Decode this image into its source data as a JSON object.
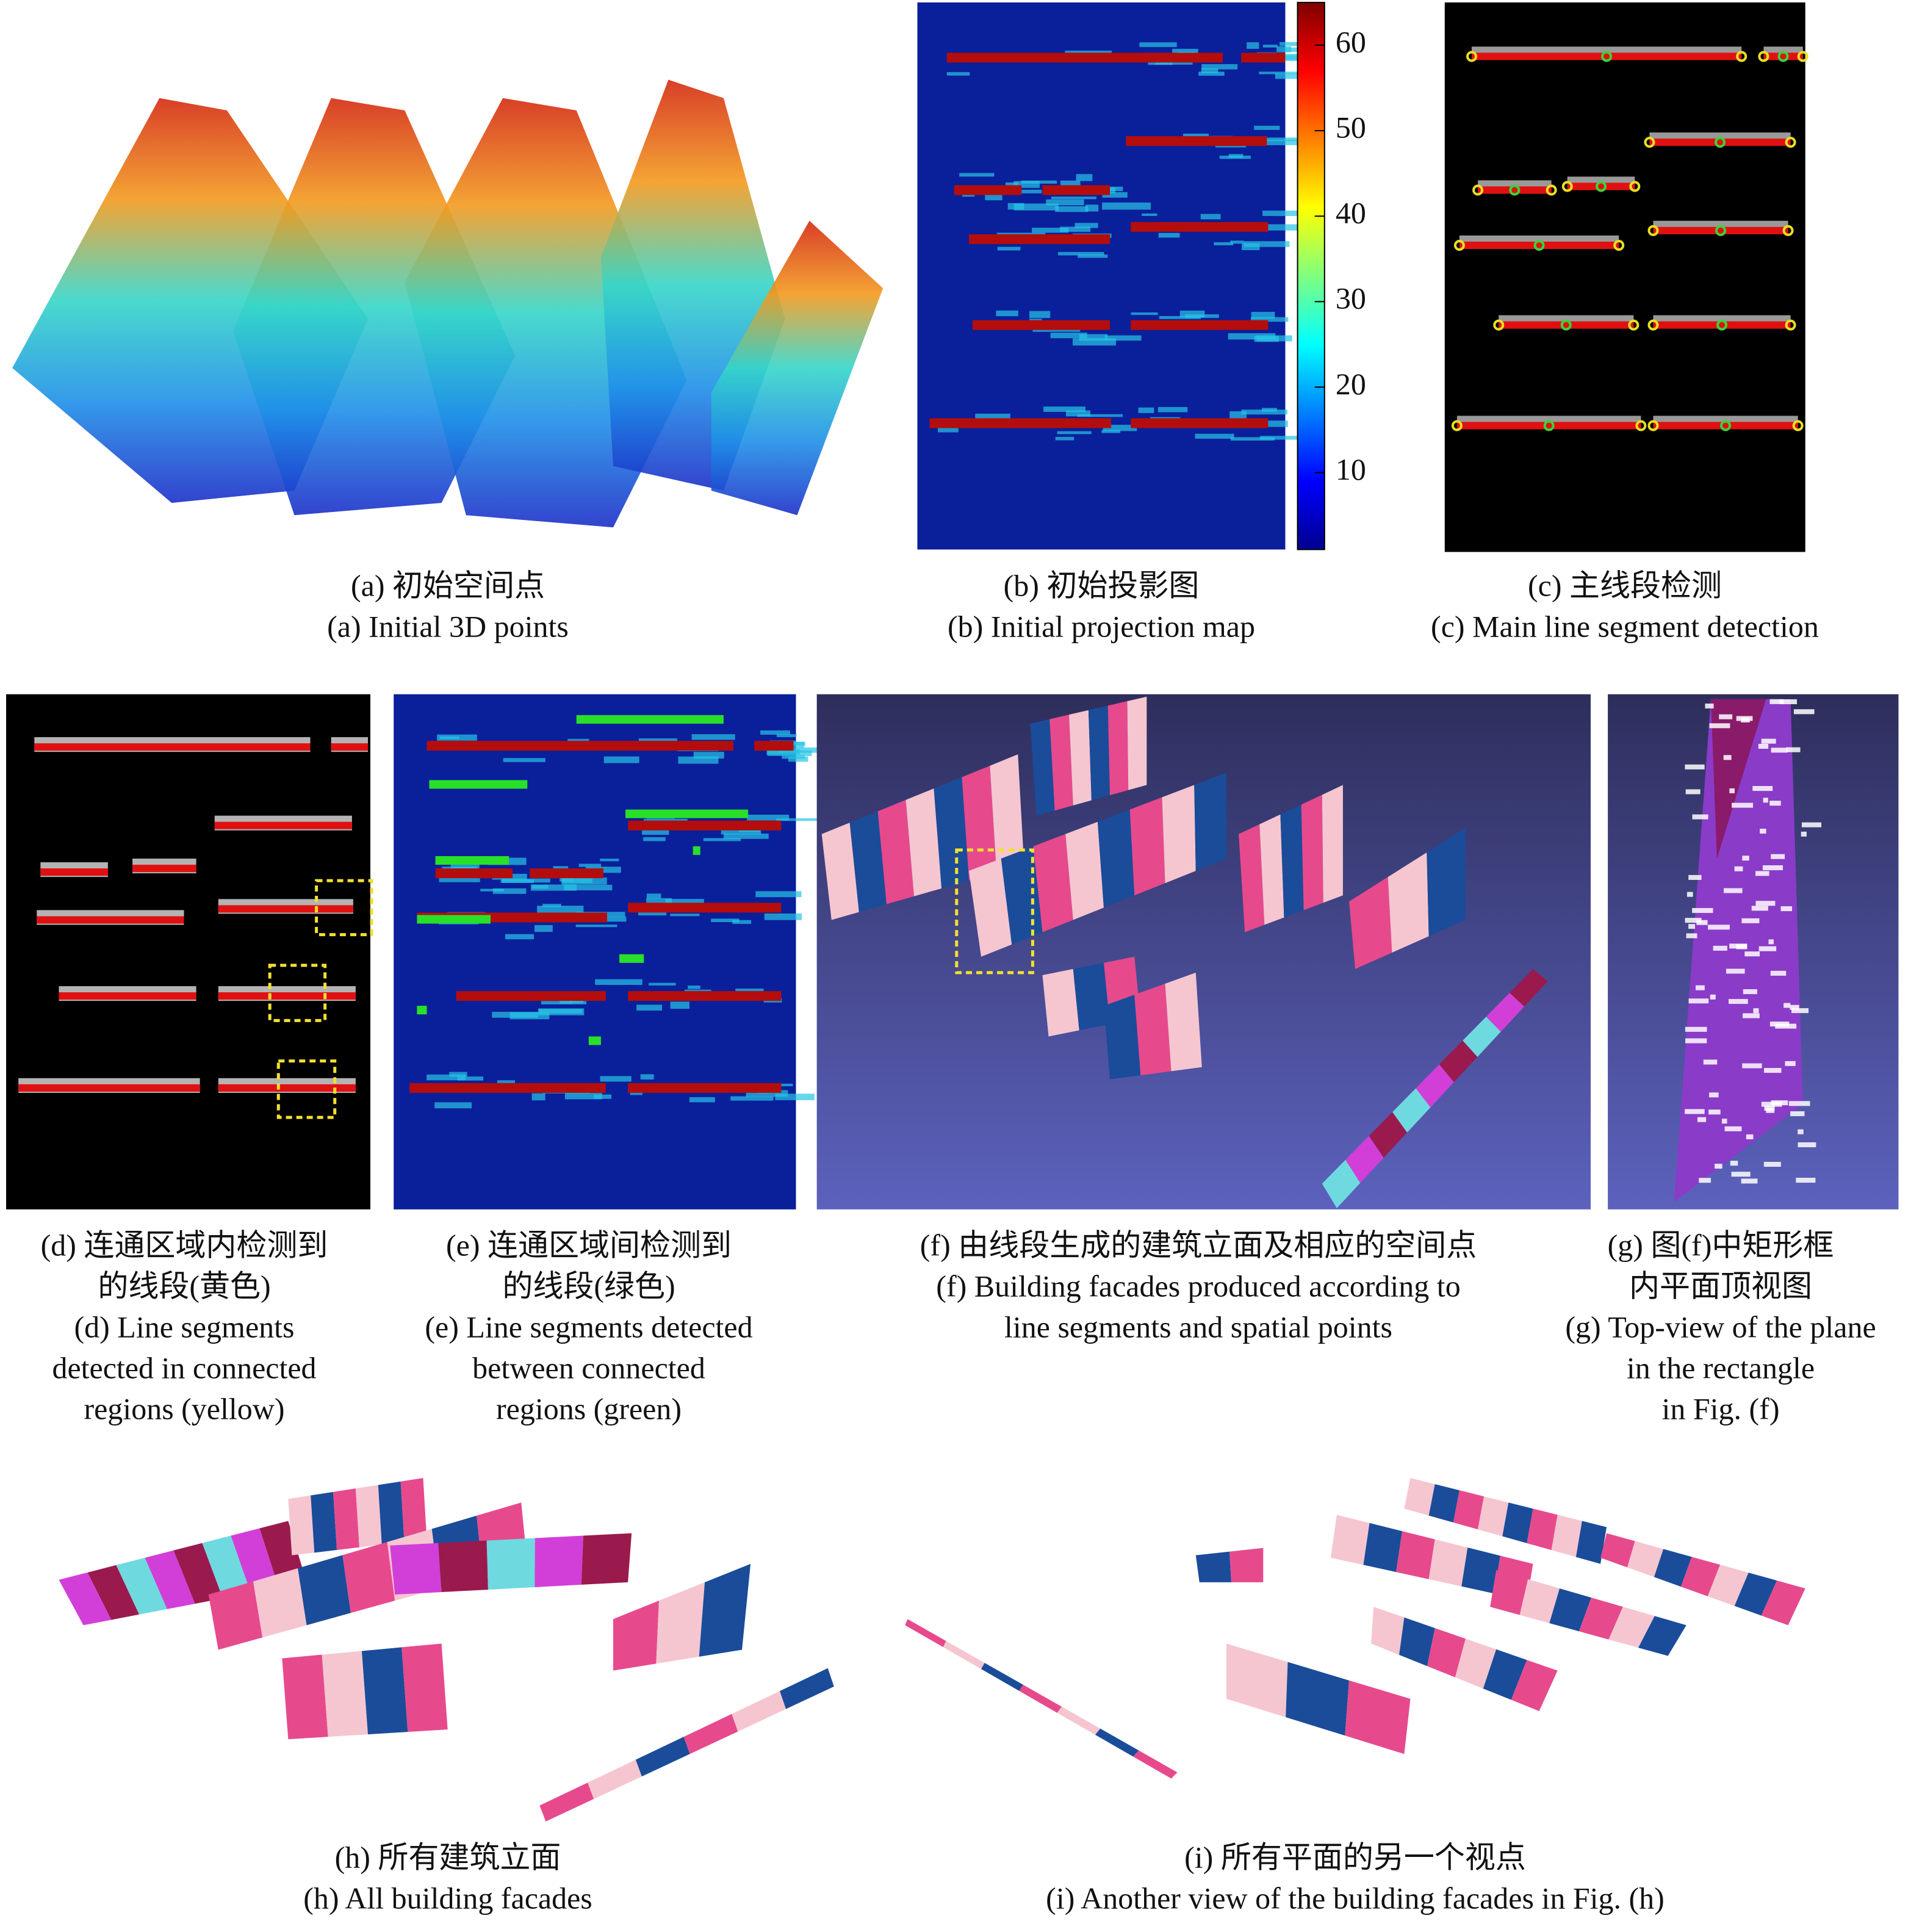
{
  "panels": [
    {
      "captions": [
        "(a) 初始空间点",
        "(a) Initial 3D points"
      ]
    },
    {
      "captions": [
        "(b) 初始投影图",
        "(b) Initial projection map"
      ]
    },
    {
      "captions": [
        "(c) 主线段检测",
        "(c) Main line segment detection"
      ]
    },
    {
      "captions": [
        "(d) 连通区域内检测到",
        "的线段(黄色)",
        "(d) Line segments",
        "detected in connected",
        "regions (yellow)"
      ]
    },
    {
      "captions": [
        "(e) 连通区域间检测到",
        "的线段(绿色)",
        "(e) Line segments detected",
        "between connected",
        "regions (green)"
      ]
    },
    {
      "captions": [
        "(f) 由线段生成的建筑立面及相应的空间点",
        "(f) Building facades produced according to",
        "line segments and spatial points"
      ]
    },
    {
      "captions": [
        "(g) 图(f)中矩形框",
        "内平面顶视图",
        "(g) Top-view of the plane",
        "in the rectangle",
        "in Fig. (f)"
      ]
    },
    {
      "captions": [
        "(h) 所有建筑立面",
        "(h) All building facades"
      ]
    },
    {
      "captions": [
        "(i) 所有平面的另一个视点",
        "(i) Another view of the building facades in Fig. (h)"
      ]
    }
  ],
  "colorbar": {
    "range": [
      1,
      65
    ],
    "ticks": [
      10,
      20,
      30,
      40,
      50,
      60
    ]
  }
}
